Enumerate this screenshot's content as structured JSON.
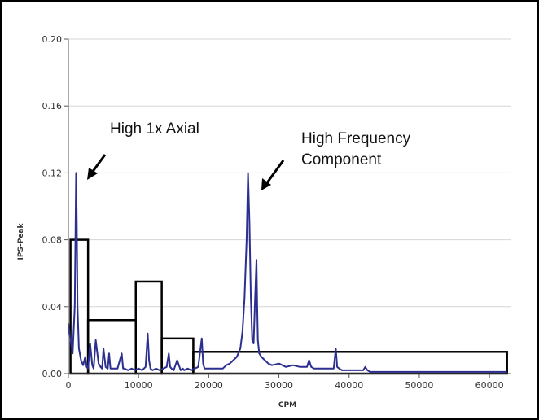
{
  "chart_data": {
    "type": "line",
    "xlabel": "CPM",
    "ylabel": "IPS-Peak",
    "xlim": [
      0,
      63000
    ],
    "ylim": [
      0,
      0.2
    ],
    "x_ticks": [
      "0",
      "10000",
      "20000",
      "30000",
      "40000",
      "50000",
      "60000"
    ],
    "x_tick_values": [
      0,
      10000,
      20000,
      30000,
      40000,
      50000,
      60000
    ],
    "y_ticks": [
      "0.00",
      "0.04",
      "0.08",
      "0.12",
      "0.16",
      "0.20"
    ],
    "y_tick_values": [
      0,
      0.04,
      0.08,
      0.12,
      0.16,
      0.2
    ],
    "grid": "horizontal",
    "series": [
      {
        "color": "#2b2f8f",
        "x": [
          0,
          300,
          600,
          900,
          1100,
          1200,
          1300,
          1500,
          1800,
          2100,
          2400,
          2600,
          2800,
          3100,
          3400,
          3600,
          3900,
          4300,
          4600,
          4800,
          5000,
          5300,
          5600,
          5800,
          6000,
          6300,
          7000,
          7600,
          7800,
          8000,
          8500,
          9000,
          9500,
          10000,
          10500,
          11000,
          11300,
          11500,
          11700,
          12000,
          12500,
          13000,
          13500,
          14000,
          14300,
          14500,
          14700,
          15000,
          15500,
          16000,
          16300,
          16500,
          17000,
          17500,
          18000,
          18500,
          19000,
          19200,
          19400,
          20000,
          21000,
          22000,
          22500,
          23000,
          23500,
          24000,
          24500,
          24800,
          25100,
          25400,
          25600,
          25800,
          26000,
          26200,
          26400,
          26600,
          26800,
          26900,
          27000,
          27200,
          27500,
          28000,
          28500,
          29000,
          30000,
          31000,
          32000,
          33000,
          34000,
          34300,
          34600,
          35000,
          36000,
          37000,
          37800,
          38100,
          38300,
          38600,
          39000,
          40000,
          41000,
          42000,
          42300,
          42600,
          43000,
          45000,
          50000,
          55000,
          60000,
          62500
        ],
        "y": [
          0.03,
          0.02,
          0.012,
          0.04,
          0.12,
          0.09,
          0.04,
          0.015,
          0.008,
          0.005,
          0.01,
          0.004,
          0.003,
          0.018,
          0.005,
          0.003,
          0.02,
          0.006,
          0.004,
          0.003,
          0.015,
          0.004,
          0.003,
          0.012,
          0.003,
          0.003,
          0.003,
          0.012,
          0.003,
          0.003,
          0.002,
          0.003,
          0.002,
          0.003,
          0.002,
          0.004,
          0.024,
          0.008,
          0.003,
          0.002,
          0.003,
          0.002,
          0.003,
          0.004,
          0.012,
          0.004,
          0.003,
          0.002,
          0.008,
          0.002,
          0.003,
          0.002,
          0.003,
          0.002,
          0.003,
          0.004,
          0.021,
          0.006,
          0.003,
          0.003,
          0.003,
          0.003,
          0.005,
          0.006,
          0.008,
          0.01,
          0.015,
          0.025,
          0.045,
          0.08,
          0.12,
          0.09,
          0.045,
          0.02,
          0.018,
          0.045,
          0.068,
          0.04,
          0.02,
          0.012,
          0.01,
          0.008,
          0.006,
          0.005,
          0.006,
          0.004,
          0.005,
          0.004,
          0.004,
          0.008,
          0.004,
          0.003,
          0.003,
          0.003,
          0.003,
          0.015,
          0.004,
          0.003,
          0.002,
          0.002,
          0.002,
          0.002,
          0.004,
          0.002,
          0.001,
          0.001,
          0.001,
          0.001,
          0.001,
          0.001
        ]
      }
    ],
    "bands": [
      {
        "x0": 300,
        "x1": 2800,
        "y": 0.08
      },
      {
        "x0": 2800,
        "x1": 9600,
        "y": 0.032
      },
      {
        "x0": 9600,
        "x1": 13300,
        "y": 0.055
      },
      {
        "x0": 13300,
        "x1": 17800,
        "y": 0.021
      },
      {
        "x0": 17800,
        "x1": 62500,
        "y": 0.013
      }
    ],
    "annotations": [
      {
        "text": "High 1x Axial",
        "x": 1100,
        "y": 0.12
      },
      {
        "text": "High Frequency\nComponent",
        "x": 25600,
        "y": 0.12
      }
    ]
  },
  "annotation_texts": {
    "left_line1": "High 1x Axial",
    "right_line1": "High Frequency",
    "right_line2": "Component"
  }
}
